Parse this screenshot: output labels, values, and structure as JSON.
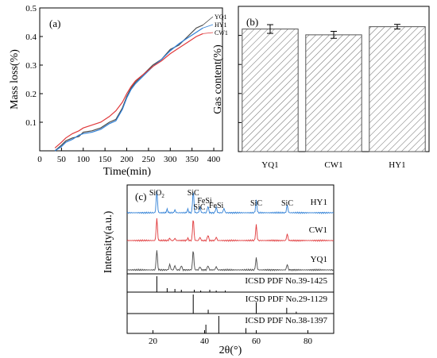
{
  "panels": {
    "a": {
      "label": "(a)"
    },
    "b": {
      "label": "(b)"
    },
    "c": {
      "label": "(c)"
    }
  },
  "colors": {
    "YQ1": "#4a4a4a",
    "HY1": "#2e7fd6",
    "CW1": "#e0393b",
    "axis": "#000000",
    "bar_hatch": "#6b6b6b"
  },
  "chart_data": [
    {
      "id": "a",
      "type": "line",
      "title": "",
      "xlabel": "Time(min)",
      "ylabel": "Mass loss(%)",
      "xlim": [
        0,
        420
      ],
      "ylim": [
        0,
        0.5
      ],
      "xticks": [
        0,
        50,
        100,
        150,
        200,
        250,
        300,
        350,
        400
      ],
      "yticks": [
        0.1,
        0.2,
        0.3,
        0.4,
        0.5
      ],
      "legend_position": "top-right",
      "series": [
        {
          "name": "YQ1",
          "x": [
            35,
            50,
            60,
            75,
            90,
            100,
            120,
            140,
            150,
            160,
            175,
            190,
            200,
            210,
            220,
            240,
            260,
            280,
            300,
            320,
            340,
            360,
            375
          ],
          "y": [
            0.0,
            0.02,
            0.035,
            0.045,
            0.05,
            0.065,
            0.07,
            0.08,
            0.09,
            0.1,
            0.11,
            0.15,
            0.19,
            0.22,
            0.24,
            0.27,
            0.3,
            0.32,
            0.355,
            0.37,
            0.4,
            0.43,
            0.44
          ]
        },
        {
          "name": "HY1",
          "x": [
            35,
            50,
            60,
            75,
            90,
            100,
            120,
            140,
            150,
            160,
            175,
            190,
            200,
            210,
            220,
            240,
            260,
            280,
            300,
            320,
            340,
            360,
            375
          ],
          "y": [
            0.0,
            0.015,
            0.03,
            0.04,
            0.055,
            0.06,
            0.065,
            0.075,
            0.085,
            0.095,
            0.105,
            0.145,
            0.185,
            0.215,
            0.235,
            0.265,
            0.295,
            0.32,
            0.35,
            0.375,
            0.395,
            0.415,
            0.43
          ]
        },
        {
          "name": "CW1",
          "x": [
            35,
            50,
            60,
            75,
            90,
            100,
            120,
            140,
            150,
            160,
            175,
            190,
            200,
            210,
            220,
            240,
            260,
            280,
            300,
            320,
            340,
            360,
            375
          ],
          "y": [
            0.01,
            0.03,
            0.045,
            0.06,
            0.07,
            0.08,
            0.09,
            0.1,
            0.11,
            0.12,
            0.14,
            0.17,
            0.2,
            0.225,
            0.245,
            0.27,
            0.295,
            0.315,
            0.34,
            0.36,
            0.38,
            0.4,
            0.41
          ]
        }
      ]
    },
    {
      "id": "b",
      "type": "bar",
      "title": "",
      "xlabel": "",
      "ylabel": "Gas content(%)",
      "ylim": [
        0,
        5
      ],
      "yticks": [
        0,
        1,
        2,
        3,
        4,
        5
      ],
      "categories": [
        "YQ1",
        "CW1",
        "HY1"
      ],
      "values": [
        4.22,
        4.02,
        4.3
      ],
      "errors": [
        0.15,
        0.12,
        0.08
      ]
    },
    {
      "id": "c",
      "type": "line",
      "title": "",
      "xlabel": "2θ(°)",
      "ylabel": "Intensity(a.u.)",
      "xlim": [
        10,
        90
      ],
      "xticks": [
        20,
        40,
        60,
        80
      ],
      "series": [
        {
          "name": "HY1",
          "peaks": [
            [
              21.5,
              1.0
            ],
            [
              25.5,
              0.15
            ],
            [
              28.5,
              0.12
            ],
            [
              33.5,
              0.15
            ],
            [
              35.6,
              1.0
            ],
            [
              38.2,
              0.25
            ],
            [
              41.3,
              0.3
            ],
            [
              44.5,
              0.25
            ],
            [
              47.5,
              0.2
            ],
            [
              60.0,
              0.55
            ],
            [
              72.0,
              0.35
            ]
          ]
        },
        {
          "name": "CW1",
          "peaks": [
            [
              21.5,
              1.0
            ],
            [
              26.5,
              0.1
            ],
            [
              28.5,
              0.1
            ],
            [
              33.5,
              0.1
            ],
            [
              35.6,
              1.0
            ],
            [
              38.2,
              0.15
            ],
            [
              41.3,
              0.25
            ],
            [
              44.5,
              0.15
            ],
            [
              60.0,
              0.7
            ],
            [
              72.0,
              0.3
            ]
          ]
        },
        {
          "name": "YQ1",
          "peaks": [
            [
              21.5,
              0.9
            ],
            [
              26.5,
              0.25
            ],
            [
              28.5,
              0.2
            ],
            [
              31.0,
              0.2
            ],
            [
              35.6,
              0.9
            ],
            [
              38.2,
              0.15
            ],
            [
              41.3,
              0.2
            ],
            [
              44.5,
              0.15
            ],
            [
              60.0,
              0.55
            ],
            [
              72.0,
              0.25
            ]
          ]
        }
      ],
      "peak_labels": [
        {
          "text": "SiO2",
          "x": 21.5
        },
        {
          "text": "SiC",
          "x": 35.6
        },
        {
          "text": "FeSi",
          "x": 40.0
        },
        {
          "text": "SiC",
          "x": 38.0
        },
        {
          "text": "FeSi",
          "x": 44.5
        },
        {
          "text": "SiC",
          "x": 60.0
        },
        {
          "text": "SiC",
          "x": 72.0
        }
      ],
      "references": [
        {
          "label": "ICSD PDF No.39-1425",
          "sticks": [
            [
              21.5,
              1.0
            ],
            [
              25.5,
              0.25
            ],
            [
              28.5,
              0.2
            ],
            [
              31.0,
              0.15
            ],
            [
              36.0,
              0.15
            ],
            [
              38.5,
              0.1
            ],
            [
              42.0,
              0.15
            ],
            [
              44.5,
              0.1
            ],
            [
              48.0,
              0.1
            ]
          ]
        },
        {
          "label": "ICSD PDF No.29-1129",
          "sticks": [
            [
              35.6,
              1.0
            ],
            [
              41.4,
              0.2
            ],
            [
              60.0,
              0.6
            ],
            [
              71.8,
              0.3
            ],
            [
              75.5,
              0.1
            ]
          ]
        },
        {
          "label": "ICSD PDF No.38-1397",
          "sticks": [
            [
              40.5,
              0.5
            ],
            [
              45.5,
              1.0
            ],
            [
              56.0,
              0.3
            ]
          ]
        }
      ]
    }
  ]
}
